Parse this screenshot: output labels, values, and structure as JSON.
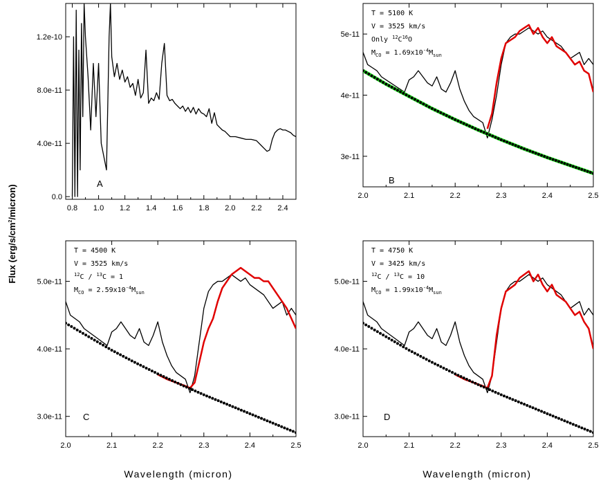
{
  "figure": {
    "ylabel_main": "Flux (erg/s/cm",
    "ylabel_sup": "2",
    "ylabel_tail": "/micron)",
    "xlabel_left": "Wavelength (micron)",
    "xlabel_right": "Wavelength (micron)"
  },
  "colors": {
    "observed": "#000000",
    "model": "#e00000",
    "continuum": "#000000",
    "continuum_fill": "#22dd22"
  },
  "chart_data": [
    {
      "id": "A",
      "type": "line",
      "panel_label": "A",
      "xlim": [
        0.75,
        2.5
      ],
      "ylim": [
        -2e-12,
        1.45e-10
      ],
      "xticks": [
        0.8,
        1.0,
        1.2,
        1.4,
        1.6,
        1.8,
        2.0,
        2.2,
        2.4
      ],
      "xtick_labels": [
        "0.8",
        "1.0",
        "1.2",
        "1.4",
        "1.6",
        "1.8",
        "2.0",
        "2.2",
        "2.4"
      ],
      "yticks": [
        0.0,
        4e-11,
        8e-11,
        1.2e-10
      ],
      "ytick_labels": [
        "0.0",
        "4.0e-11",
        "8.0e-11",
        "1.2e-10"
      ],
      "annotations": [],
      "series": [
        {
          "role": "observed",
          "x": [
            0.8,
            0.81,
            0.82,
            0.83,
            0.84,
            0.85,
            0.86,
            0.87,
            0.88,
            0.89,
            0.9,
            0.92,
            0.94,
            0.96,
            0.98,
            1.0,
            1.02,
            1.04,
            1.06,
            1.08,
            1.09,
            1.1,
            1.12,
            1.14,
            1.16,
            1.18,
            1.2,
            1.22,
            1.24,
            1.26,
            1.28,
            1.3,
            1.32,
            1.34,
            1.36,
            1.38,
            1.4,
            1.42,
            1.44,
            1.46,
            1.48,
            1.5,
            1.52,
            1.54,
            1.56,
            1.58,
            1.6,
            1.62,
            1.64,
            1.66,
            1.68,
            1.7,
            1.72,
            1.74,
            1.76,
            1.78,
            1.8,
            1.82,
            1.84,
            1.86,
            1.88,
            1.9,
            1.92,
            1.94,
            1.96,
            1.98,
            2.0,
            2.04,
            2.08,
            2.12,
            2.16,
            2.2,
            2.24,
            2.26,
            2.28,
            2.3,
            2.32,
            2.34,
            2.36,
            2.38,
            2.4,
            2.42,
            2.44,
            2.46,
            2.48,
            2.5
          ],
          "y": [
            0.0,
            1.2e-10,
            0.0,
            1.4e-10,
            0.0,
            1.1e-10,
            2e-11,
            1.3e-10,
            6e-11,
            1.45e-10,
            1.2e-10,
            9e-11,
            5e-11,
            1e-10,
            6e-11,
            1e-10,
            4e-11,
            3e-11,
            2e-11,
            1.2e-10,
            1.45e-10,
            1.05e-10,
            9e-11,
            1e-10,
            8.8e-11,
            9.5e-11,
            8.6e-11,
            9e-11,
            8.2e-11,
            8.5e-11,
            7.6e-11,
            8.8e-11,
            7.4e-11,
            7.8e-11,
            1.1e-10,
            7e-11,
            7.4e-11,
            7.2e-11,
            7.8e-11,
            7.3e-11,
            1e-10,
            1.15e-10,
            7.6e-11,
            7.2e-11,
            7.3e-11,
            7e-11,
            6.8e-11,
            6.6e-11,
            6.8e-11,
            6.4e-11,
            6.7e-11,
            6.3e-11,
            6.7e-11,
            6.2e-11,
            6.6e-11,
            6.3e-11,
            6.2e-11,
            6e-11,
            6.6e-11,
            5.5e-11,
            6.3e-11,
            5.4e-11,
            5.2e-11,
            5e-11,
            4.9e-11,
            4.7e-11,
            4.5e-11,
            4.5e-11,
            4.4e-11,
            4.3e-11,
            4.3e-11,
            4.2e-11,
            3.8e-11,
            3.6e-11,
            3.4e-11,
            3.5e-11,
            4.3e-11,
            4.8e-11,
            5e-11,
            5.1e-11,
            5e-11,
            5e-11,
            4.9e-11,
            4.8e-11,
            4.6e-11,
            4.5e-11
          ]
        }
      ]
    },
    {
      "id": "B",
      "type": "line",
      "panel_label": "B",
      "xlim": [
        2.0,
        2.5
      ],
      "ylim": [
        2.5e-11,
        5.5e-11
      ],
      "xticks": [
        2.0,
        2.1,
        2.2,
        2.3,
        2.4,
        2.5
      ],
      "xtick_labels": [
        "2.0",
        "2.1",
        "2.2",
        "2.3",
        "2.4",
        "2.5"
      ],
      "yticks": [
        3e-11,
        4e-11,
        5e-11
      ],
      "ytick_labels": [
        "3e-11",
        "4e-11",
        "5e-11"
      ],
      "annotations": {
        "line1": "T = 5100 K",
        "line2": "V = 3525 km/s",
        "line3_prefix": "Only ",
        "line3_sup1": "12",
        "line3_mid": "C",
        "line3_sup2": "16",
        "line3_suffix": "O",
        "line4_prefix": "M",
        "line4_sub": "CO",
        "line4_mid": " = 1.69x10",
        "line4_sup": "-4",
        "line4_tail": "M",
        "line4_sub2": "sun"
      },
      "series": [
        {
          "role": "observed",
          "x": [
            2.0,
            2.01,
            2.02,
            2.03,
            2.04,
            2.05,
            2.06,
            2.07,
            2.08,
            2.09,
            2.1,
            2.11,
            2.12,
            2.13,
            2.14,
            2.15,
            2.16,
            2.17,
            2.18,
            2.19,
            2.2,
            2.21,
            2.22,
            2.23,
            2.24,
            2.25,
            2.26,
            2.27,
            2.28,
            2.29,
            2.3,
            2.31,
            2.32,
            2.33,
            2.34,
            2.35,
            2.36,
            2.37,
            2.38,
            2.39,
            2.4,
            2.41,
            2.42,
            2.43,
            2.44,
            2.45,
            2.46,
            2.47,
            2.48,
            2.49,
            2.5
          ],
          "y": [
            4.7e-11,
            4.5e-11,
            4.45e-11,
            4.4e-11,
            4.3e-11,
            4.25e-11,
            4.2e-11,
            4.15e-11,
            4.1e-11,
            4.05e-11,
            4.25e-11,
            4.3e-11,
            4.4e-11,
            4.3e-11,
            4.2e-11,
            4.15e-11,
            4.3e-11,
            4.1e-11,
            4.05e-11,
            4.2e-11,
            4.4e-11,
            4.1e-11,
            3.9e-11,
            3.75e-11,
            3.65e-11,
            3.6e-11,
            3.55e-11,
            3.3e-11,
            3.6e-11,
            4e-11,
            4.5e-11,
            4.85e-11,
            4.95e-11,
            5e-11,
            5e-11,
            5.05e-11,
            5.1e-11,
            5.05e-11,
            5e-11,
            5.05e-11,
            4.95e-11,
            4.9e-11,
            4.85e-11,
            4.8e-11,
            4.7e-11,
            4.6e-11,
            4.65e-11,
            4.7e-11,
            4.5e-11,
            4.6e-11,
            4.5e-11
          ]
        },
        {
          "role": "model",
          "x": [
            2.27,
            2.28,
            2.29,
            2.3,
            2.31,
            2.32,
            2.33,
            2.34,
            2.35,
            2.36,
            2.37,
            2.38,
            2.39,
            2.4,
            2.41,
            2.42,
            2.43,
            2.44,
            2.45,
            2.46,
            2.47,
            2.48,
            2.49,
            2.5
          ],
          "y": [
            3.45e-11,
            3.7e-11,
            4.2e-11,
            4.6e-11,
            4.85e-11,
            4.9e-11,
            4.95e-11,
            5.05e-11,
            5.1e-11,
            5.15e-11,
            5e-11,
            5.1e-11,
            4.95e-11,
            4.85e-11,
            4.95e-11,
            4.8e-11,
            4.75e-11,
            4.7e-11,
            4.6e-11,
            4.5e-11,
            4.55e-11,
            4.4e-11,
            4.35e-11,
            4.05e-11
          ]
        },
        {
          "role": "continuum",
          "x": [
            2.0,
            2.05,
            2.1,
            2.15,
            2.2,
            2.25,
            2.3,
            2.35,
            2.4,
            2.45,
            2.5
          ],
          "y": [
            4.4e-11,
            4.18e-11,
            3.98e-11,
            3.78e-11,
            3.6e-11,
            3.43e-11,
            3.27e-11,
            3.12e-11,
            2.98e-11,
            2.85e-11,
            2.72e-11
          ]
        }
      ]
    },
    {
      "id": "C",
      "type": "line",
      "panel_label": "C",
      "xlim": [
        2.0,
        2.5
      ],
      "ylim": [
        2.7e-11,
        5.6e-11
      ],
      "xticks": [
        2.0,
        2.1,
        2.2,
        2.3,
        2.4,
        2.5
      ],
      "xtick_labels": [
        "2.0",
        "2.1",
        "2.2",
        "2.3",
        "2.4",
        "2.5"
      ],
      "yticks": [
        3e-11,
        4e-11,
        5e-11
      ],
      "ytick_labels": [
        "3.0e-11",
        "4.0e-11",
        "5.0e-11"
      ],
      "annotations": {
        "line1": "T = 4500 K",
        "line2": "V = 3525 km/s",
        "line3_sup1": "12",
        "line3_mid": "C / ",
        "line3_sup2": "13",
        "line3_suffix": "C = 1",
        "line4_prefix": "M",
        "line4_sub": "CO",
        "line4_mid": " = 2.59x10",
        "line4_sup": "-4",
        "line4_tail": "M",
        "line4_sub2": "sun"
      },
      "series": [
        {
          "role": "observed",
          "x": [
            2.0,
            2.01,
            2.02,
            2.03,
            2.04,
            2.05,
            2.06,
            2.07,
            2.08,
            2.09,
            2.1,
            2.11,
            2.12,
            2.13,
            2.14,
            2.15,
            2.16,
            2.17,
            2.18,
            2.19,
            2.2,
            2.21,
            2.22,
            2.23,
            2.24,
            2.25,
            2.26,
            2.27,
            2.28,
            2.29,
            2.3,
            2.31,
            2.32,
            2.33,
            2.34,
            2.35,
            2.36,
            2.37,
            2.38,
            2.39,
            2.4,
            2.41,
            2.42,
            2.43,
            2.44,
            2.45,
            2.46,
            2.47,
            2.48,
            2.49,
            2.5
          ],
          "y": [
            4.7e-11,
            4.5e-11,
            4.45e-11,
            4.4e-11,
            4.3e-11,
            4.25e-11,
            4.2e-11,
            4.15e-11,
            4.1e-11,
            4.05e-11,
            4.25e-11,
            4.3e-11,
            4.4e-11,
            4.3e-11,
            4.2e-11,
            4.15e-11,
            4.3e-11,
            4.1e-11,
            4.05e-11,
            4.2e-11,
            4.4e-11,
            4.1e-11,
            3.9e-11,
            3.75e-11,
            3.65e-11,
            3.6e-11,
            3.55e-11,
            3.35e-11,
            3.6e-11,
            4.1e-11,
            4.6e-11,
            4.85e-11,
            4.95e-11,
            5e-11,
            5e-11,
            5.05e-11,
            5.1e-11,
            5.05e-11,
            5e-11,
            5.05e-11,
            4.95e-11,
            4.9e-11,
            4.85e-11,
            4.8e-11,
            4.7e-11,
            4.6e-11,
            4.65e-11,
            4.7e-11,
            4.5e-11,
            4.6e-11,
            4.5e-11
          ]
        },
        {
          "role": "model",
          "x": [
            2.2,
            2.22,
            2.24,
            2.26,
            2.27,
            2.28,
            2.29,
            2.3,
            2.31,
            2.32,
            2.33,
            2.34,
            2.35,
            2.36,
            2.37,
            2.38,
            2.39,
            2.4,
            2.41,
            2.42,
            2.43,
            2.44,
            2.45,
            2.46,
            2.47,
            2.48,
            2.49,
            2.5
          ],
          "y": [
            3.62e-11,
            3.55e-11,
            3.5e-11,
            3.45e-11,
            3.42e-11,
            3.5e-11,
            3.8e-11,
            4.1e-11,
            4.3e-11,
            4.45e-11,
            4.7e-11,
            4.9e-11,
            5e-11,
            5.1e-11,
            5.15e-11,
            5.2e-11,
            5.15e-11,
            5.1e-11,
            5.05e-11,
            5.05e-11,
            5e-11,
            5e-11,
            4.9e-11,
            4.8e-11,
            4.7e-11,
            4.6e-11,
            4.45e-11,
            4.3e-11
          ]
        },
        {
          "role": "continuum",
          "x": [
            2.0,
            2.05,
            2.1,
            2.15,
            2.2,
            2.25,
            2.3,
            2.35,
            2.4,
            2.45,
            2.5
          ],
          "y": [
            4.38e-11,
            4.18e-11,
            3.98e-11,
            3.8e-11,
            3.63e-11,
            3.47e-11,
            3.32e-11,
            3.18e-11,
            3.04e-11,
            2.9e-11,
            2.76e-11
          ]
        }
      ]
    },
    {
      "id": "D",
      "type": "line",
      "panel_label": "D",
      "xlim": [
        2.0,
        2.5
      ],
      "ylim": [
        2.7e-11,
        5.6e-11
      ],
      "xticks": [
        2.0,
        2.1,
        2.2,
        2.3,
        2.4,
        2.5
      ],
      "xtick_labels": [
        "2.0",
        "2.1",
        "2.2",
        "2.3",
        "2.4",
        "2.5"
      ],
      "yticks": [
        3e-11,
        4e-11,
        5e-11
      ],
      "ytick_labels": [
        "3.0e-11",
        "4.0e-11",
        "5.0e-11"
      ],
      "annotations": {
        "line1": "T = 4750 K",
        "line2": "V = 3425 km/s",
        "line3_sup1": "12",
        "line3_mid": "C / ",
        "line3_sup2": "13",
        "line3_suffix": "C = 10",
        "line4_prefix": "M",
        "line4_sub": "CO",
        "line4_mid": " = 1.99x10",
        "line4_sup": "-4",
        "line4_tail": "M",
        "line4_sub2": "sun"
      },
      "series": [
        {
          "role": "observed",
          "x": [
            2.0,
            2.01,
            2.02,
            2.03,
            2.04,
            2.05,
            2.06,
            2.07,
            2.08,
            2.09,
            2.1,
            2.11,
            2.12,
            2.13,
            2.14,
            2.15,
            2.16,
            2.17,
            2.18,
            2.19,
            2.2,
            2.21,
            2.22,
            2.23,
            2.24,
            2.25,
            2.26,
            2.27,
            2.28,
            2.29,
            2.3,
            2.31,
            2.32,
            2.33,
            2.34,
            2.35,
            2.36,
            2.37,
            2.38,
            2.39,
            2.4,
            2.41,
            2.42,
            2.43,
            2.44,
            2.45,
            2.46,
            2.47,
            2.48,
            2.49,
            2.5
          ],
          "y": [
            4.7e-11,
            4.5e-11,
            4.45e-11,
            4.4e-11,
            4.3e-11,
            4.25e-11,
            4.2e-11,
            4.15e-11,
            4.1e-11,
            4.05e-11,
            4.25e-11,
            4.3e-11,
            4.4e-11,
            4.3e-11,
            4.2e-11,
            4.15e-11,
            4.3e-11,
            4.1e-11,
            4.05e-11,
            4.2e-11,
            4.4e-11,
            4.1e-11,
            3.9e-11,
            3.75e-11,
            3.65e-11,
            3.6e-11,
            3.55e-11,
            3.35e-11,
            3.6e-11,
            4.1e-11,
            4.6e-11,
            4.85e-11,
            4.95e-11,
            5e-11,
            5e-11,
            5.05e-11,
            5.1e-11,
            5.05e-11,
            5e-11,
            5.05e-11,
            4.95e-11,
            4.9e-11,
            4.85e-11,
            4.8e-11,
            4.7e-11,
            4.6e-11,
            4.65e-11,
            4.7e-11,
            4.5e-11,
            4.6e-11,
            4.5e-11
          ]
        },
        {
          "role": "model",
          "x": [
            2.2,
            2.22,
            2.24,
            2.26,
            2.27,
            2.28,
            2.29,
            2.3,
            2.31,
            2.32,
            2.33,
            2.34,
            2.35,
            2.36,
            2.37,
            2.38,
            2.39,
            2.4,
            2.41,
            2.42,
            2.43,
            2.44,
            2.45,
            2.46,
            2.47,
            2.48,
            2.49,
            2.5
          ],
          "y": [
            3.62e-11,
            3.55e-11,
            3.5e-11,
            3.45e-11,
            3.42e-11,
            3.6e-11,
            4.2e-11,
            4.6e-11,
            4.85e-11,
            4.9e-11,
            4.95e-11,
            5.05e-11,
            5.1e-11,
            5.15e-11,
            5e-11,
            5.1e-11,
            4.95e-11,
            4.85e-11,
            4.95e-11,
            4.8e-11,
            4.75e-11,
            4.7e-11,
            4.6e-11,
            4.5e-11,
            4.55e-11,
            4.4e-11,
            4.3e-11,
            4e-11
          ]
        },
        {
          "role": "continuum",
          "x": [
            2.0,
            2.05,
            2.1,
            2.15,
            2.2,
            2.25,
            2.3,
            2.35,
            2.4,
            2.45,
            2.5
          ],
          "y": [
            4.38e-11,
            4.18e-11,
            3.98e-11,
            3.8e-11,
            3.63e-11,
            3.47e-11,
            3.32e-11,
            3.18e-11,
            3.04e-11,
            2.9e-11,
            2.76e-11
          ]
        }
      ]
    }
  ]
}
